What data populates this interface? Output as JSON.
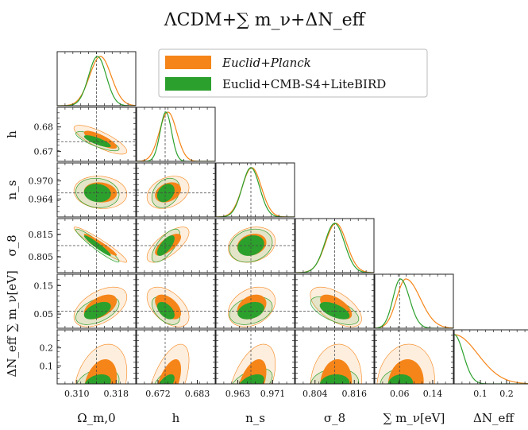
{
  "title": "ΛCDM+∑ m_ν+ΔN_eff",
  "legend": {
    "entries": [
      {
        "label": "Euclid+Planck",
        "color": "#f58518"
      },
      {
        "label": "Euclid+CMB-S4+LiteBIRD",
        "color": "#2ca02c"
      }
    ]
  },
  "chart_data": {
    "type": "corner",
    "parameters": [
      {
        "name": "Ω_m,0",
        "fiducial": 0.314,
        "range": [
          0.306,
          0.322
        ],
        "ticks": [
          "0.310",
          "0.318"
        ]
      },
      {
        "name": "h",
        "fiducial": 0.674,
        "range": [
          0.666,
          0.688
        ],
        "ticks": [
          "0.672",
          "0.683"
        ]
      },
      {
        "name": "n_s",
        "fiducial": 0.966,
        "range": [
          0.958,
          0.976
        ],
        "ticks": [
          "0.963",
          "0.971"
        ]
      },
      {
        "name": "σ_8",
        "fiducial": 0.81,
        "range": [
          0.798,
          0.822
        ],
        "ticks": [
          "0.804",
          "0.816"
        ]
      },
      {
        "name": "∑ m_ν[eV]",
        "fiducial": 0.06,
        "range": [
          0.0,
          0.19
        ],
        "ticks": [
          "0.06",
          "0.14"
        ]
      },
      {
        "name": "ΔN_eff",
        "fiducial": 0.0,
        "range": [
          0.0,
          0.3
        ],
        "ticks": [
          "0.1",
          "0.2"
        ]
      }
    ],
    "y_ticks": {
      "h": [
        "0.68",
        "0.67"
      ],
      "n_s": [
        "0.970",
        "0.964"
      ],
      "σ_8": [
        "0.815",
        "0.805"
      ],
      "∑ m_ν[eV]": [
        "0.15",
        "0.05"
      ],
      "ΔN_eff": [
        "0.2",
        "0.1"
      ]
    },
    "series": [
      {
        "name": "Euclid+Planck",
        "color": "#f58518",
        "marginals": [
          {
            "mean": 0.3148,
            "sigma": 0.0022
          },
          {
            "mean": 0.6748,
            "sigma": 0.0024
          },
          {
            "mean": 0.9662,
            "sigma": 0.0022
          },
          {
            "mean": 0.8104,
            "sigma": 0.0032
          },
          {
            "peak": 0.075,
            "sigma_left": 0.022,
            "sigma_right": 0.035
          },
          {
            "half_normal_sigma": 0.09
          }
        ]
      },
      {
        "name": "Euclid+CMB-S4+LiteBIRD",
        "color": "#2ca02c",
        "marginals": [
          {
            "mean": 0.3142,
            "sigma": 0.0018
          },
          {
            "mean": 0.6742,
            "sigma": 0.0016
          },
          {
            "mean": 0.966,
            "sigma": 0.002
          },
          {
            "mean": 0.81,
            "sigma": 0.003
          },
          {
            "peak": 0.062,
            "sigma_left": 0.018,
            "sigma_right": 0.022
          },
          {
            "half_normal_sigma": 0.035
          }
        ]
      }
    ],
    "correlations": {
      "h|Ω_m,0": -0.8,
      "n_s|Ω_m,0": -0.1,
      "n_s|h": 0.3,
      "σ_8|Ω_m,0": -0.95,
      "σ_8|h": 0.7,
      "σ_8|n_s": 0.2,
      "∑ m_ν[eV]|Ω_m,0": 0.5,
      "∑ m_ν[eV]|h": -0.5,
      "∑ m_ν[eV]|n_s": 0.3,
      "∑ m_ν[eV]|σ_8": -0.6,
      "ΔN_eff|Ω_m,0": 0.3,
      "ΔN_eff|h": 0.6,
      "ΔN_eff|n_s": 0.5,
      "ΔN_eff|σ_8": 0.1,
      "ΔN_eff|∑ m_ν[eV]": 0.1
    }
  }
}
